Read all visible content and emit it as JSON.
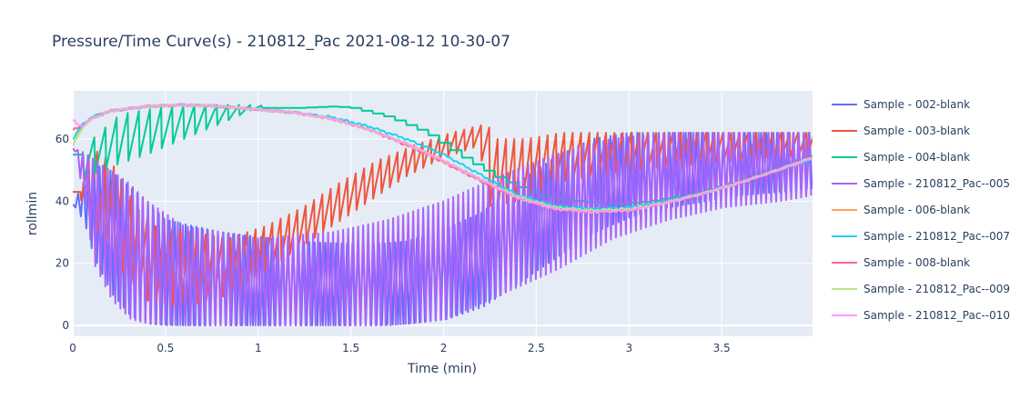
{
  "chart_data": {
    "type": "line",
    "title": "Pressure/Time Curve(s) - 210812_Pac 2021-08-12 10-30-07",
    "xlabel": "Time (min)",
    "ylabel": "rollmin",
    "xlim": [
      0,
      3.99
    ],
    "ylim": [
      -3.5,
      75.5
    ],
    "x_ticks": [
      0,
      0.5,
      1,
      1.5,
      2,
      2.5,
      3,
      3.5
    ],
    "x_tick_labels": [
      "0",
      "0.5",
      "1",
      "1.5",
      "2",
      "2.5",
      "3",
      "3.5"
    ],
    "y_ticks": [
      0,
      20,
      40,
      60
    ],
    "y_tick_labels": [
      "0",
      "20",
      "40",
      "60"
    ],
    "grid": true,
    "legend_position": "right",
    "series": [
      {
        "name": "Sample - 002-blank",
        "color": "#636efa",
        "style": "oscillating-deep",
        "x": [
          0,
          0.05,
          0.1,
          0.2,
          0.3,
          0.4,
          0.5,
          0.8,
          1.2,
          1.6,
          1.8,
          2.0,
          2.2,
          2.4,
          2.6,
          2.8,
          3.0,
          3.2,
          3.4,
          3.6,
          3.8,
          3.99
        ],
        "upper": [
          39,
          45,
          52,
          50,
          45,
          40,
          34,
          30,
          27,
          26,
          27,
          31,
          36,
          46,
          54,
          60,
          62,
          62,
          62,
          62,
          62,
          62
        ],
        "lower": [
          38,
          33,
          22,
          10,
          3,
          0.5,
          0,
          0,
          0,
          0,
          0.5,
          2,
          6,
          14,
          22,
          30,
          35,
          38,
          40,
          42,
          43,
          44
        ],
        "period": 0.029
      },
      {
        "name": "Sample - 003-blank",
        "color": "#ef553b",
        "style": "sawtooth",
        "x": [
          0,
          0.05,
          0.1,
          0.2,
          0.3,
          0.4,
          0.6,
          0.8,
          1.0,
          1.2,
          1.4,
          1.6,
          1.8,
          2.0,
          2.2,
          2.22,
          2.4,
          2.6,
          2.8,
          3.0,
          3.4,
          3.8,
          3.99
        ],
        "upper": [
          43,
          56,
          56,
          50,
          38,
          32,
          30,
          28,
          32,
          38,
          46,
          53,
          58,
          62,
          65,
          60,
          60,
          62,
          62,
          62,
          62,
          62,
          62
        ],
        "lower": [
          43,
          40,
          34,
          24,
          14,
          8,
          6,
          9,
          16,
          24,
          32,
          40,
          48,
          54,
          58,
          38,
          40,
          46,
          48,
          50,
          52,
          54,
          55
        ],
        "period": 0.045
      },
      {
        "name": "Sample - 004-blank",
        "color": "#00cc96",
        "style": "mixed",
        "x": [
          0,
          0.05,
          0.2,
          0.4,
          0.6,
          0.8,
          0.95,
          1.0,
          1.2,
          1.4,
          1.5,
          1.7,
          1.9,
          2.1,
          2.3,
          2.5,
          2.7,
          2.9,
          3.1,
          3.3,
          3.5,
          3.7,
          3.99
        ],
        "upper": [
          55,
          60,
          68,
          70,
          71,
          71,
          71,
          70,
          70,
          70.5,
          70,
          67,
          62,
          54,
          47,
          42,
          40,
          39,
          40,
          42,
          45,
          49,
          55
        ],
        "lower": [
          55,
          47,
          51,
          55,
          60,
          65,
          69,
          70,
          70,
          70.5,
          70,
          67,
          62,
          54,
          47,
          42,
          40,
          39,
          40,
          42,
          45,
          49,
          55
        ],
        "period": 0.06
      },
      {
        "name": "Sample - 210812_Pac--005",
        "color": "#ab63fa",
        "style": "oscillating-deep",
        "x": [
          0,
          0.05,
          0.1,
          0.2,
          0.3,
          0.4,
          0.6,
          1.0,
          1.4,
          1.7,
          2.0,
          2.3,
          2.6,
          2.9,
          3.2,
          3.5,
          3.8,
          3.99
        ],
        "upper": [
          57,
          56,
          54,
          50,
          46,
          40,
          32,
          28,
          30,
          34,
          40,
          48,
          55,
          60,
          62,
          62,
          62,
          62
        ],
        "lower": [
          56,
          40,
          20,
          8,
          2,
          0.5,
          0,
          0,
          0,
          0,
          2,
          10,
          18,
          28,
          34,
          38,
          40,
          42
        ],
        "period": 0.027
      },
      {
        "name": "Sample - 006-blank",
        "color": "#ffa15a",
        "style": "smooth",
        "x": [
          0,
          0.05,
          0.1,
          0.2,
          0.4,
          0.6,
          0.8,
          1.0,
          1.2,
          1.4,
          1.6,
          1.8,
          2.0,
          2.2,
          2.4,
          2.6,
          2.8,
          3.0,
          3.2,
          3.4,
          3.6,
          3.8,
          3.99
        ],
        "values": [
          58,
          64,
          67,
          69,
          70.5,
          71,
          70.5,
          69.5,
          68.5,
          66.5,
          63,
          58.5,
          53,
          47,
          41,
          37.5,
          36.5,
          37,
          39.5,
          42.5,
          46,
          50,
          54
        ]
      },
      {
        "name": "Sample - 210812_Pac--007",
        "color": "#19d3f3",
        "style": "smooth",
        "x": [
          0,
          0.05,
          0.1,
          0.2,
          0.4,
          0.6,
          0.8,
          1.0,
          1.2,
          1.4,
          1.6,
          1.8,
          2.0,
          2.2,
          2.4,
          2.6,
          2.8,
          3.0,
          3.2,
          3.4,
          3.6,
          3.8,
          3.99
        ],
        "values": [
          60,
          64.5,
          67,
          69,
          70.5,
          71,
          70.5,
          69.5,
          68.5,
          67,
          64,
          60,
          55,
          48.5,
          42,
          38.5,
          37.5,
          38,
          40,
          42.5,
          46,
          50,
          53.5
        ]
      },
      {
        "name": "Sample - 008-blank",
        "color": "#ff6692",
        "style": "smooth",
        "x": [
          0,
          0.05,
          0.1,
          0.2,
          0.4,
          0.6,
          0.8,
          1.0,
          1.2,
          1.4,
          1.6,
          1.8,
          2.0,
          2.2,
          2.4,
          2.6,
          2.8,
          3.0,
          3.2,
          3.4,
          3.6,
          3.8,
          3.99
        ],
        "values": [
          63,
          64,
          66.5,
          69,
          70.5,
          71,
          70.5,
          69.5,
          68.5,
          66.5,
          63,
          58,
          52.5,
          46.5,
          41,
          37.5,
          36.5,
          37,
          39.5,
          42.5,
          46,
          50,
          54
        ]
      },
      {
        "name": "Sample - 210812_Pac--009",
        "color": "#b6e880",
        "style": "smooth",
        "x": [
          0,
          0.05,
          0.1,
          0.2,
          0.4,
          0.6,
          0.8,
          1.0,
          1.2,
          1.4,
          1.6,
          1.8,
          2.0,
          2.2,
          2.4,
          2.6,
          2.8,
          3.0,
          3.2,
          3.4,
          3.6,
          3.8,
          3.99
        ],
        "values": [
          58,
          63.5,
          66.5,
          69,
          70.5,
          71,
          70.5,
          69.5,
          68.5,
          66.5,
          63,
          58.5,
          53,
          47,
          41.5,
          38,
          37,
          37.5,
          39.5,
          42.5,
          46,
          50,
          54
        ]
      },
      {
        "name": "Sample - 210812_Pac--010",
        "color": "#ff97ff",
        "style": "smooth",
        "x": [
          0,
          0.05,
          0.1,
          0.2,
          0.4,
          0.6,
          0.8,
          1.0,
          1.2,
          1.4,
          1.6,
          1.8,
          2.0,
          2.2,
          2.4,
          2.6,
          2.8,
          3.0,
          3.2,
          3.4,
          3.6,
          3.8,
          3.99
        ],
        "values": [
          66,
          64,
          66.5,
          69,
          70.5,
          71,
          70.5,
          69.5,
          68.5,
          66.5,
          63,
          58.5,
          53,
          47,
          41,
          37.5,
          36.5,
          37,
          39.5,
          42.5,
          46,
          50,
          54
        ]
      }
    ]
  }
}
